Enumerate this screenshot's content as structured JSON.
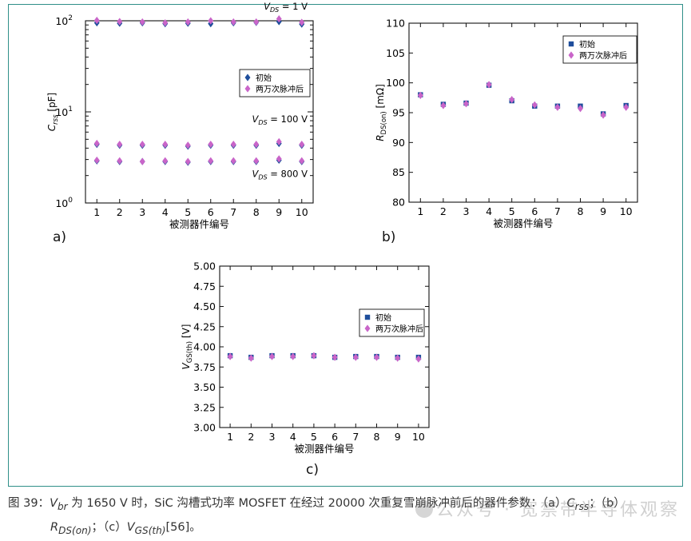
{
  "panel_labels": [
    "a)",
    "b)",
    "c)"
  ],
  "caption": {
    "fig_label": "图 39：",
    "v_sym": "V",
    "v_sub": "br",
    "part1": " 为 1650 V 时，SiC 沟槽式功率 MOSFET 在经过 20000 次重复雪崩脉冲前后的器件参数：（a）",
    "c_sym": "C",
    "c_sub": "rss",
    "part2": "；（b）",
    "r_sym": "R",
    "r_sub": "DS(on)",
    "part3": "；（c）",
    "vg_sym": "V",
    "vg_sub": "GS(th)",
    "part4": "[56]。"
  },
  "watermark": "公众号 · 宽禁带半导体观察",
  "colors": {
    "before": "#1f4e9c",
    "after": "#c965c9",
    "frame": "#2f8f89"
  },
  "chart_data": [
    {
      "type": "scatter",
      "panel": "a)",
      "yscale": "log",
      "ylim": [
        1,
        100
      ],
      "xlim": [
        0.5,
        10.5
      ],
      "xlabel": "被测器件编号",
      "ylabel": {
        "sym": "C",
        "sub": "rss",
        "unit": " [pF]"
      },
      "x": [
        1,
        2,
        3,
        4,
        5,
        6,
        7,
        8,
        9,
        10
      ],
      "yticks": [
        {
          "v": 1,
          "base": "10",
          "exp": "0"
        },
        {
          "v": 10,
          "base": "10",
          "exp": "1"
        },
        {
          "v": 100,
          "base": "10",
          "exp": "2"
        }
      ],
      "legend": {
        "position": "right",
        "entries": [
          {
            "label": "初始",
            "marker": "diamond"
          },
          {
            "label": "两万次脉冲后",
            "marker": "diamond"
          }
        ]
      },
      "annotations": [
        {
          "sym": "V",
          "sub": "DS",
          "text": " = 1 V",
          "at": 100
        },
        {
          "sym": "V",
          "sub": "DS",
          "text": " = 100 V",
          "at": 9
        },
        {
          "sym": "V",
          "sub": "DS",
          "text": " = 800 V",
          "at": 2.05
        }
      ],
      "series": [
        {
          "name": "初始",
          "values": [
            95,
            94,
            95,
            93,
            94,
            93,
            95,
            96,
            98,
            92
          ]
        },
        {
          "name": "两万次脉冲后",
          "values": [
            101,
            98,
            97,
            95,
            97,
            100,
            97,
            97,
            105,
            96
          ]
        },
        {
          "name": "初始",
          "values": [
            4.4,
            4.3,
            4.3,
            4.3,
            4.2,
            4.3,
            4.3,
            4.3,
            4.5,
            4.3
          ]
        },
        {
          "name": "两万次脉冲后",
          "values": [
            4.5,
            4.4,
            4.4,
            4.4,
            4.3,
            4.4,
            4.4,
            4.4,
            4.7,
            4.4
          ]
        },
        {
          "name": "初始",
          "values": [
            2.9,
            2.85,
            2.85,
            2.85,
            2.8,
            2.85,
            2.85,
            2.85,
            2.95,
            2.85
          ]
        },
        {
          "name": "两万次脉冲后",
          "values": [
            2.95,
            2.9,
            2.85,
            2.9,
            2.85,
            2.9,
            2.9,
            2.9,
            3.05,
            2.9
          ]
        }
      ]
    },
    {
      "type": "scatter",
      "panel": "b)",
      "ylim": [
        80,
        110
      ],
      "xlim": [
        0.5,
        10.5
      ],
      "xlabel": "被测器件编号",
      "ylabel": {
        "sym": "R",
        "sub": "DS(on)",
        "unit": " [mΩ]"
      },
      "x": [
        1,
        2,
        3,
        4,
        5,
        6,
        7,
        8,
        9,
        10
      ],
      "yticks": [
        80,
        85,
        90,
        95,
        100,
        105,
        110
      ],
      "legend": {
        "position": "top-right",
        "entries": [
          {
            "label": "初始",
            "marker": "square"
          },
          {
            "label": "两万次脉冲后",
            "marker": "diamond"
          }
        ]
      },
      "series": [
        {
          "name": "初始",
          "values": [
            98.0,
            96.4,
            96.6,
            99.6,
            97.0,
            96.1,
            96.1,
            96.1,
            94.8,
            96.2
          ]
        },
        {
          "name": "两万次脉冲后",
          "values": [
            97.9,
            96.2,
            96.5,
            99.7,
            97.2,
            96.3,
            95.9,
            95.7,
            94.6,
            95.9
          ]
        }
      ]
    },
    {
      "type": "scatter",
      "panel": "c)",
      "ylim": [
        3.0,
        5.0
      ],
      "xlim": [
        0.5,
        10.5
      ],
      "xlabel": "被测器件编号",
      "ylabel": {
        "sym": "V",
        "sub": "GS(th)",
        "unit": " [V]"
      },
      "x": [
        1,
        2,
        3,
        4,
        5,
        6,
        7,
        8,
        9,
        10
      ],
      "yticks": [
        "3.00",
        "3.25",
        "3.50",
        "3.75",
        "4.00",
        "4.25",
        "4.50",
        "4.75",
        "5.00"
      ],
      "legend": {
        "position": "top-right",
        "entries": [
          {
            "label": "初始",
            "marker": "square"
          },
          {
            "label": "两万次脉冲后",
            "marker": "diamond"
          }
        ]
      },
      "series": [
        {
          "name": "初始",
          "values": [
            3.89,
            3.87,
            3.89,
            3.89,
            3.89,
            3.87,
            3.88,
            3.88,
            3.87,
            3.87
          ]
        },
        {
          "name": "两万次脉冲后",
          "values": [
            3.88,
            3.86,
            3.88,
            3.88,
            3.89,
            3.87,
            3.87,
            3.87,
            3.86,
            3.85
          ]
        }
      ]
    }
  ]
}
